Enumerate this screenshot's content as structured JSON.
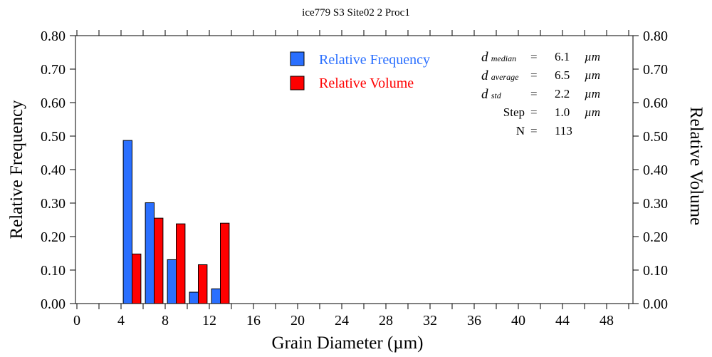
{
  "chart_data": {
    "type": "bar",
    "title": "ice779 S3 Site02 2 Proc1",
    "xlabel": "Grain Diameter (µm)",
    "ylabel": "Relative Frequency",
    "y2label": "Relative Volume",
    "xlim": [
      0,
      50.4
    ],
    "ylim": [
      0,
      0.8
    ],
    "x_ticks": [
      "0",
      "4",
      "8",
      "12",
      "16",
      "20",
      "24",
      "28",
      "32",
      "36",
      "40",
      "44",
      "48"
    ],
    "y_ticks": [
      "0.00",
      "0.10",
      "0.20",
      "0.30",
      "0.40",
      "0.50",
      "0.60",
      "0.70",
      "0.80"
    ],
    "bin_centers": [
      5,
      7,
      9,
      11,
      13
    ],
    "series": [
      {
        "name": "Relative Frequency",
        "color": "#2a6fff",
        "values": [
          0.487,
          0.301,
          0.131,
          0.034,
          0.044
        ]
      },
      {
        "name": "Relative Volume",
        "color": "#ff0000",
        "values": [
          0.148,
          0.255,
          0.238,
          0.116,
          0.24
        ]
      }
    ],
    "legend_position": "top-center",
    "stats": [
      {
        "sym": "d",
        "sub": "median",
        "eq": "=",
        "value": "6.1",
        "unit": "µm"
      },
      {
        "sym": "d",
        "sub": "average",
        "eq": "=",
        "value": "6.5",
        "unit": "µm"
      },
      {
        "sym": "d",
        "sub": "std",
        "eq": "=",
        "value": "2.2",
        "unit": "µm"
      },
      {
        "sym": "Step",
        "sub": "",
        "eq": "=",
        "value": "1.0",
        "unit": "µm"
      },
      {
        "sym": "N",
        "sub": "",
        "eq": "=",
        "value": "113",
        "unit": ""
      }
    ]
  }
}
